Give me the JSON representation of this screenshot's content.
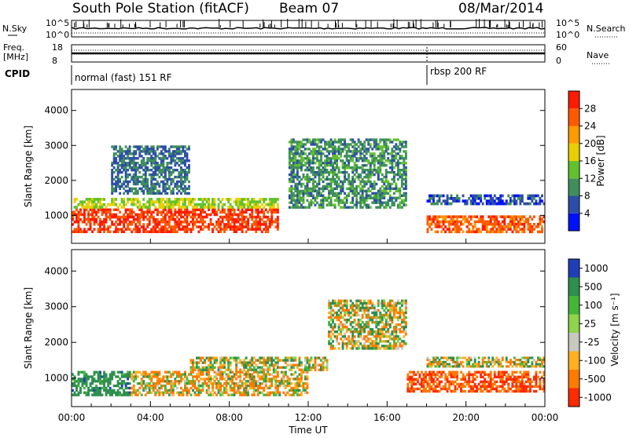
{
  "header": {
    "station": "South Pole Station (fitACF)",
    "beam": "Beam 07",
    "date": "08/Mar/2014"
  },
  "nsky_panel": {
    "left_label": "N.Sky",
    "right_label": "N.Search",
    "left_ticks": [
      "10^5",
      "10^0"
    ],
    "right_ticks": [
      "10^5",
      "10^0"
    ]
  },
  "freq_panel": {
    "left_label_line1": "Freq.",
    "left_label_line2": "[MHz]",
    "right_label": "Nave",
    "left_ticks": [
      "18",
      "8"
    ],
    "right_ticks": [
      "60",
      "0"
    ]
  },
  "cpid_panel": {
    "label": "CPID",
    "segments": [
      {
        "text": "normal (fast) 151 RF",
        "start_hour": 0.0
      },
      {
        "text": "rbsp 200 RF",
        "start_hour": 18.0
      }
    ]
  },
  "power_panel": {
    "ylabel": "Slant Range [km]",
    "yticks": [
      "1000",
      "2000",
      "3000",
      "4000"
    ],
    "colorbar_label": "Power [dB]",
    "colorbar_ticks": [
      "4",
      "8",
      "12",
      "16",
      "20",
      "24",
      "28"
    ],
    "colors": [
      "#0010ff",
      "#2d4ea8",
      "#3f8f5c",
      "#62c22e",
      "#e8d000",
      "#ff9a00",
      "#ff5a00",
      "#ff1a00"
    ]
  },
  "velocity_panel": {
    "ylabel": "Slant Range [km]",
    "yticks": [
      "1000",
      "2000",
      "3000",
      "4000"
    ],
    "colorbar_label": "Velocity [m s⁻¹]",
    "colorbar_ticks": [
      "1000",
      "500",
      "100",
      "25",
      "-25",
      "-100",
      "-500",
      "-1000"
    ],
    "colors": [
      "#1f3fb8",
      "#2f8f4f",
      "#45b53a",
      "#8fd44a",
      "#c8c8c0",
      "#ffb020",
      "#ff7a00",
      "#ff2a00"
    ]
  },
  "x_axis": {
    "title": "Time UT",
    "ticks": [
      "00:00",
      "04:00",
      "08:00",
      "12:00",
      "16:00",
      "20:00",
      "00:00"
    ]
  },
  "chart_data": [
    {
      "type": "heatmap",
      "title": "South Pole Station (fitACF) Beam 07 08/Mar/2014",
      "xlabel": "Time UT",
      "ylabel": "Slant Range [km]",
      "colorbar": "Power [dB]",
      "xlim": [
        0,
        24
      ],
      "ylim": [
        200,
        4600
      ],
      "clim": [
        0,
        32
      ],
      "regions": [
        {
          "x": [
            0,
            10.5
          ],
          "y": [
            500,
            1200
          ],
          "value": 28
        },
        {
          "x": [
            0,
            10.5
          ],
          "y": [
            1200,
            1500
          ],
          "value": 16
        },
        {
          "x": [
            2,
            6
          ],
          "y": [
            1600,
            3000
          ],
          "value": 8
        },
        {
          "x": [
            11,
            17
          ],
          "y": [
            1200,
            3200
          ],
          "value": 10
        },
        {
          "x": [
            18,
            24
          ],
          "y": [
            500,
            1000
          ],
          "value": 26
        },
        {
          "x": [
            18,
            24
          ],
          "y": [
            1300,
            1600
          ],
          "value": 6
        }
      ]
    },
    {
      "type": "heatmap",
      "title": "South Pole Station (fitACF) Beam 07 08/Mar/2014",
      "xlabel": "Time UT",
      "ylabel": "Slant Range [km]",
      "colorbar": "Velocity [m s⁻¹]",
      "xlim": [
        0,
        24
      ],
      "ylim": [
        200,
        4600
      ],
      "clim": [
        -1000,
        1000
      ],
      "regions": [
        {
          "x": [
            0,
            3
          ],
          "y": [
            500,
            1200
          ],
          "value": 300
        },
        {
          "x": [
            3,
            12
          ],
          "y": [
            500,
            1200
          ],
          "value": -100
        },
        {
          "x": [
            6,
            13
          ],
          "y": [
            1200,
            1600
          ],
          "value": 25
        },
        {
          "x": [
            13,
            17
          ],
          "y": [
            1800,
            3200
          ],
          "value": 0
        },
        {
          "x": [
            17,
            24
          ],
          "y": [
            600,
            1200
          ],
          "value": -500
        },
        {
          "x": [
            18,
            24
          ],
          "y": [
            1300,
            1600
          ],
          "value": 0
        }
      ]
    }
  ]
}
